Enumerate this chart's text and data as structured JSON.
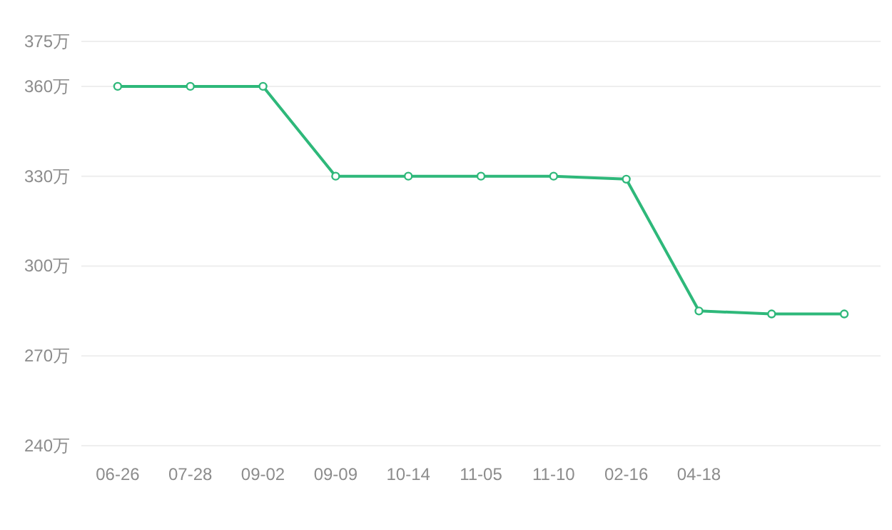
{
  "chart_data": {
    "type": "line",
    "categories": [
      "06-26",
      "07-28",
      "09-02",
      "09-09",
      "10-14",
      "11-05",
      "11-10",
      "02-16",
      "04-18",
      null,
      null
    ],
    "series": [
      {
        "color": "#2eb87a",
        "values": [
          360,
          360,
          360,
          330,
          330,
          330,
          330,
          329,
          285,
          284,
          284
        ]
      }
    ],
    "ylim": [
      240,
      375
    ],
    "yticks": [
      {
        "value": 240,
        "label": "240万"
      },
      {
        "value": 270,
        "label": "270万"
      },
      {
        "value": 300,
        "label": "300万"
      },
      {
        "value": 330,
        "label": "330万"
      },
      {
        "value": 360,
        "label": "360万"
      },
      {
        "value": 375,
        "label": "375万"
      }
    ],
    "grid": "y",
    "marker": "circle",
    "line_style": "solid"
  }
}
